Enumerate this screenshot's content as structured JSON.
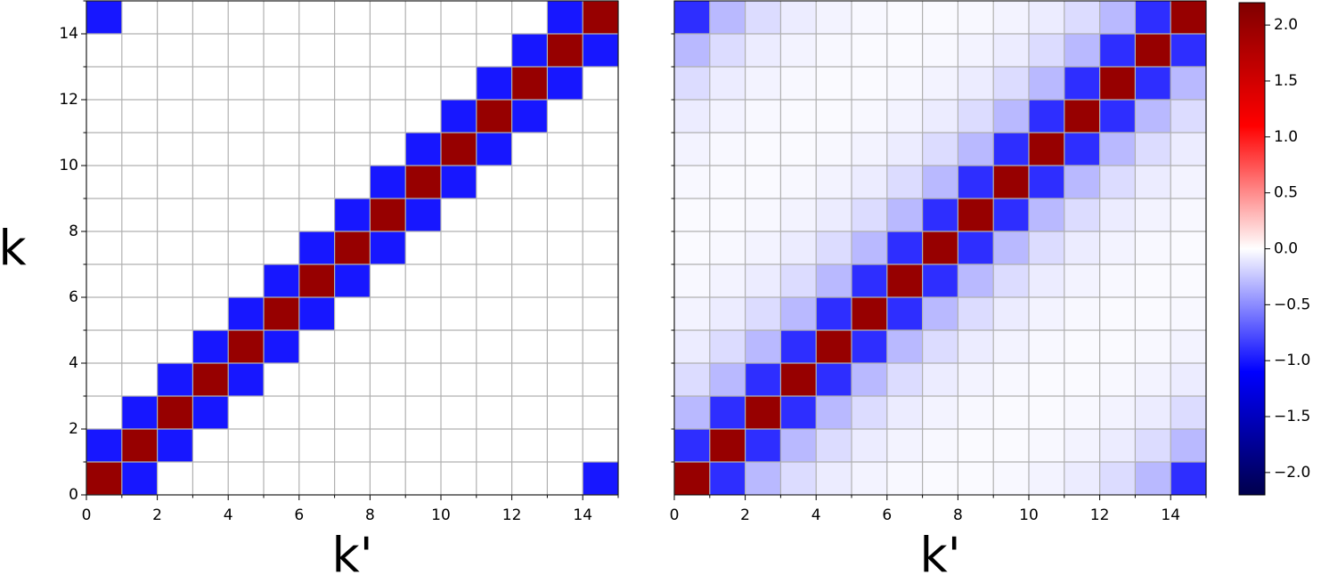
{
  "chart_data": [
    {
      "type": "heatmap",
      "xlabel": "k'",
      "ylabel": "k",
      "colormap": "seismic",
      "zlim": [
        -2.2,
        2.2
      ],
      "grid": true,
      "xlim": [
        0,
        15
      ],
      "ylim": [
        0,
        15
      ],
      "xticks": [
        0,
        2,
        4,
        6,
        8,
        10,
        12,
        14
      ],
      "xminorticks": [
        1,
        3,
        5,
        7,
        9,
        11,
        13,
        15
      ],
      "yticks": [
        0,
        2,
        4,
        6,
        8,
        10,
        12,
        14
      ],
      "yminorticks": [
        1,
        3,
        5,
        7,
        9,
        11,
        13,
        15
      ],
      "values": [
        [
          2,
          -1,
          0,
          0,
          0,
          0,
          0,
          0,
          0,
          0,
          0,
          0,
          0,
          0,
          -1
        ],
        [
          -1,
          2,
          -1,
          0,
          0,
          0,
          0,
          0,
          0,
          0,
          0,
          0,
          0,
          0,
          0
        ],
        [
          0,
          -1,
          2,
          -1,
          0,
          0,
          0,
          0,
          0,
          0,
          0,
          0,
          0,
          0,
          0
        ],
        [
          0,
          0,
          -1,
          2,
          -1,
          0,
          0,
          0,
          0,
          0,
          0,
          0,
          0,
          0,
          0
        ],
        [
          0,
          0,
          0,
          -1,
          2,
          -1,
          0,
          0,
          0,
          0,
          0,
          0,
          0,
          0,
          0
        ],
        [
          0,
          0,
          0,
          0,
          -1,
          2,
          -1,
          0,
          0,
          0,
          0,
          0,
          0,
          0,
          0
        ],
        [
          0,
          0,
          0,
          0,
          0,
          -1,
          2,
          -1,
          0,
          0,
          0,
          0,
          0,
          0,
          0
        ],
        [
          0,
          0,
          0,
          0,
          0,
          0,
          -1,
          2,
          -1,
          0,
          0,
          0,
          0,
          0,
          0
        ],
        [
          0,
          0,
          0,
          0,
          0,
          0,
          0,
          -1,
          2,
          -1,
          0,
          0,
          0,
          0,
          0
        ],
        [
          0,
          0,
          0,
          0,
          0,
          0,
          0,
          0,
          -1,
          2,
          -1,
          0,
          0,
          0,
          0
        ],
        [
          0,
          0,
          0,
          0,
          0,
          0,
          0,
          0,
          0,
          -1,
          2,
          -1,
          0,
          0,
          0
        ],
        [
          0,
          0,
          0,
          0,
          0,
          0,
          0,
          0,
          0,
          0,
          -1,
          2,
          -1,
          0,
          0
        ],
        [
          0,
          0,
          0,
          0,
          0,
          0,
          0,
          0,
          0,
          0,
          0,
          -1,
          2,
          -1,
          0
        ],
        [
          0,
          0,
          0,
          0,
          0,
          0,
          0,
          0,
          0,
          0,
          0,
          0,
          -1,
          2,
          -1
        ],
        [
          -1,
          0,
          0,
          0,
          0,
          0,
          0,
          0,
          0,
          0,
          0,
          0,
          0,
          -1,
          2
        ]
      ]
    },
    {
      "type": "heatmap",
      "xlabel": "k'",
      "colormap": "seismic",
      "zlim": [
        -2.2,
        2.2
      ],
      "grid": true,
      "xlim": [
        0,
        15
      ],
      "ylim": [
        0,
        15
      ],
      "xticks": [
        0,
        2,
        4,
        6,
        8,
        10,
        12,
        14
      ],
      "xminorticks": [
        1,
        3,
        5,
        7,
        9,
        11,
        13,
        15
      ],
      "yminorticks": [
        1,
        2,
        3,
        4,
        5,
        6,
        7,
        8,
        9,
        10,
        11,
        12,
        13,
        14
      ],
      "values": [
        [
          2,
          -0.9,
          -0.3,
          -0.15,
          -0.08,
          -0.05,
          -0.03,
          -0.02,
          -0.02,
          -0.03,
          -0.05,
          -0.08,
          -0.15,
          -0.3,
          -0.9
        ],
        [
          -0.9,
          2,
          -0.9,
          -0.3,
          -0.15,
          -0.08,
          -0.05,
          -0.03,
          -0.02,
          -0.02,
          -0.03,
          -0.05,
          -0.08,
          -0.15,
          -0.3
        ],
        [
          -0.3,
          -0.9,
          2,
          -0.9,
          -0.3,
          -0.15,
          -0.08,
          -0.05,
          -0.03,
          -0.02,
          -0.02,
          -0.03,
          -0.05,
          -0.08,
          -0.15
        ],
        [
          -0.15,
          -0.3,
          -0.9,
          2,
          -0.9,
          -0.3,
          -0.15,
          -0.08,
          -0.05,
          -0.03,
          -0.02,
          -0.02,
          -0.03,
          -0.05,
          -0.08
        ],
        [
          -0.08,
          -0.15,
          -0.3,
          -0.9,
          2,
          -0.9,
          -0.3,
          -0.15,
          -0.08,
          -0.05,
          -0.03,
          -0.02,
          -0.02,
          -0.03,
          -0.05
        ],
        [
          -0.05,
          -0.08,
          -0.15,
          -0.3,
          -0.9,
          2,
          -0.9,
          -0.3,
          -0.15,
          -0.08,
          -0.05,
          -0.03,
          -0.02,
          -0.02,
          -0.03
        ],
        [
          -0.03,
          -0.05,
          -0.08,
          -0.15,
          -0.3,
          -0.9,
          2,
          -0.9,
          -0.3,
          -0.15,
          -0.08,
          -0.05,
          -0.03,
          -0.02,
          -0.02
        ],
        [
          -0.02,
          -0.03,
          -0.05,
          -0.08,
          -0.15,
          -0.3,
          -0.9,
          2,
          -0.9,
          -0.3,
          -0.15,
          -0.08,
          -0.05,
          -0.03,
          -0.02
        ],
        [
          -0.02,
          -0.02,
          -0.03,
          -0.05,
          -0.08,
          -0.15,
          -0.3,
          -0.9,
          2,
          -0.9,
          -0.3,
          -0.15,
          -0.08,
          -0.05,
          -0.03
        ],
        [
          -0.03,
          -0.02,
          -0.02,
          -0.03,
          -0.05,
          -0.08,
          -0.15,
          -0.3,
          -0.9,
          2,
          -0.9,
          -0.3,
          -0.15,
          -0.08,
          -0.05
        ],
        [
          -0.05,
          -0.03,
          -0.02,
          -0.02,
          -0.03,
          -0.05,
          -0.08,
          -0.15,
          -0.3,
          -0.9,
          2,
          -0.9,
          -0.3,
          -0.15,
          -0.08
        ],
        [
          -0.08,
          -0.05,
          -0.03,
          -0.02,
          -0.02,
          -0.03,
          -0.05,
          -0.08,
          -0.15,
          -0.3,
          -0.9,
          2,
          -0.9,
          -0.3,
          -0.15
        ],
        [
          -0.15,
          -0.08,
          -0.05,
          -0.03,
          -0.02,
          -0.02,
          -0.03,
          -0.05,
          -0.08,
          -0.15,
          -0.3,
          -0.9,
          2,
          -0.9,
          -0.3
        ],
        [
          -0.3,
          -0.15,
          -0.08,
          -0.05,
          -0.03,
          -0.02,
          -0.02,
          -0.03,
          -0.05,
          -0.08,
          -0.15,
          -0.3,
          -0.9,
          2,
          -0.9
        ],
        [
          -0.9,
          -0.3,
          -0.15,
          -0.08,
          -0.05,
          -0.03,
          -0.02,
          -0.02,
          -0.03,
          -0.05,
          -0.08,
          -0.15,
          -0.3,
          -0.9,
          2
        ]
      ],
      "colorbar": {
        "ticks": [
          {
            "value": -2,
            "label": "−2.0"
          },
          {
            "value": -1.5,
            "label": "−1.5"
          },
          {
            "value": -1,
            "label": "−1.0"
          },
          {
            "value": -0.5,
            "label": "−0.5"
          },
          {
            "value": 0,
            "label": "0.0"
          },
          {
            "value": 0.5,
            "label": "0.5"
          },
          {
            "value": 1,
            "label": "1.0"
          },
          {
            "value": 1.5,
            "label": "1.5"
          },
          {
            "value": 2,
            "label": "2.0"
          }
        ]
      }
    }
  ]
}
